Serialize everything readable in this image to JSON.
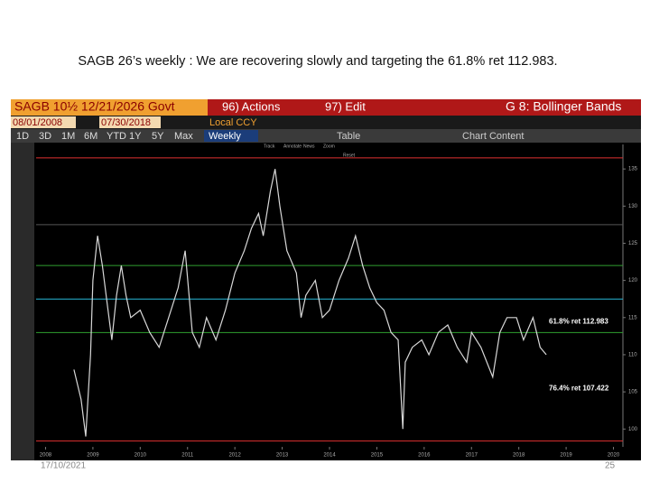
{
  "slide": {
    "title": "SAGB 26’s weekly : We are recovering slowly and targeting the 61.8% ret 112.983.",
    "date": "17/10/2021",
    "page": "25"
  },
  "terminal": {
    "security": "SAGB 10½ 12/21/2026 Govt",
    "actions": "96) Actions",
    "edit": "97) Edit",
    "study": "G 8: Bollinger Bands",
    "start_date": "08/01/2008",
    "end_date": "07/30/2018",
    "currency": "Local CCY",
    "periods": [
      "1D",
      "3D",
      "1M",
      "6M",
      "YTD",
      "1Y",
      "5Y",
      "Max"
    ],
    "frequency": "Weekly",
    "table": "Table",
    "chart_content": "Chart Content",
    "legend": [
      "Track",
      "Annotate",
      "News",
      "Zoom",
      "Reset"
    ]
  },
  "chart_data": {
    "type": "line",
    "x": [
      2008.6,
      2008.75,
      2008.85,
      2008.95,
      2009.0,
      2009.1,
      2009.2,
      2009.3,
      2009.4,
      2009.5,
      2009.6,
      2009.7,
      2009.8,
      2010.0,
      2010.2,
      2010.4,
      2010.6,
      2010.8,
      2010.95,
      2011.1,
      2011.25,
      2011.4,
      2011.6,
      2011.8,
      2012.0,
      2012.2,
      2012.35,
      2012.5,
      2012.6,
      2012.75,
      2012.85,
      2012.95,
      2013.1,
      2013.3,
      2013.4,
      2013.5,
      2013.7,
      2013.85,
      2014.0,
      2014.2,
      2014.4,
      2014.55,
      2014.7,
      2014.85,
      2015.0,
      2015.15,
      2015.3,
      2015.45,
      2015.55,
      2015.6,
      2015.75,
      2015.95,
      2016.1,
      2016.3,
      2016.5,
      2016.7,
      2016.9,
      2017.0,
      2017.2,
      2017.45,
      2017.6,
      2017.75,
      2017.95,
      2018.1,
      2018.3,
      2018.45,
      2018.58
    ],
    "series": [
      {
        "name": "Price",
        "color": "#d8d8d8",
        "values": [
          108,
          104,
          99,
          110,
          120,
          126,
          122,
          117,
          112,
          118,
          122,
          118,
          115,
          116,
          113,
          111,
          115,
          119,
          124,
          113,
          111,
          115,
          112,
          116,
          121,
          124,
          127,
          129,
          126,
          132,
          135,
          130,
          124,
          121,
          115,
          118,
          120,
          115,
          116,
          120,
          123,
          126,
          122,
          119,
          117,
          116,
          113,
          112,
          100,
          109,
          111,
          112,
          110,
          113,
          114,
          111,
          109,
          113,
          111,
          107,
          113,
          115,
          115,
          112,
          115,
          111,
          110
        ]
      }
    ],
    "hlines": [
      {
        "value": 136.5,
        "color": "#e03030"
      },
      {
        "value": 127.5,
        "color": "#555555"
      },
      {
        "value": 122,
        "color": "#2fa02f"
      },
      {
        "value": 117.5,
        "color": "#27b8d8"
      },
      {
        "value": 112.983,
        "color": "#2fa02f"
      },
      {
        "value": 98.4,
        "color": "#e03030"
      }
    ],
    "annotations": [
      {
        "value": 112.983,
        "label": "61.8% ret 112.983"
      },
      {
        "value": 107.422,
        "label": "76.4% ret 107.422"
      }
    ],
    "xlim": [
      2007.8,
      2020.2
    ],
    "xticks": [
      2008,
      2009,
      2010,
      2011,
      2012,
      2013,
      2014,
      2015,
      2016,
      2017,
      2018,
      2019,
      2020
    ],
    "ylim": [
      97.6,
      138.3
    ],
    "yticks": [
      100,
      105,
      110,
      115,
      120,
      125,
      130,
      135
    ]
  }
}
